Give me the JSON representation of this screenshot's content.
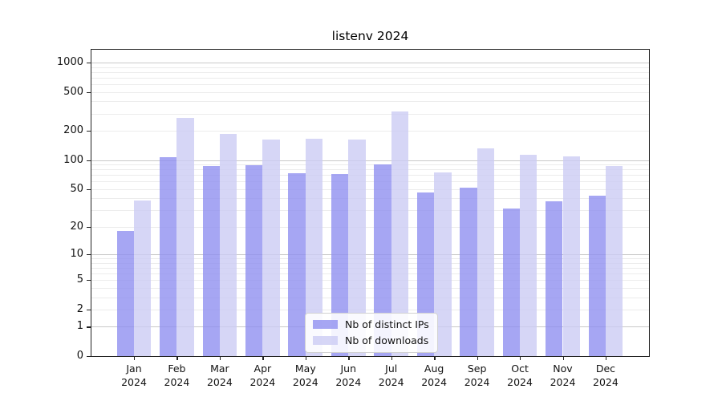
{
  "title": "listenv 2024",
  "chart_data": {
    "type": "bar",
    "title": "listenv 2024",
    "categories": [
      "Jan 2024",
      "Feb 2024",
      "Mar 2024",
      "Apr 2024",
      "May 2024",
      "Jun 2024",
      "Jul 2024",
      "Aug 2024",
      "Sep 2024",
      "Oct 2024",
      "Nov 2024",
      "Dec 2024"
    ],
    "series": [
      {
        "name": "Nb of distinct IPs",
        "color": "#9090f0",
        "fill_opacity": 0.8,
        "values": [
          18,
          107,
          87,
          89,
          73,
          71,
          90,
          46,
          52,
          31,
          37,
          43
        ]
      },
      {
        "name": "Nb of downloads",
        "color": "#ccccf4",
        "fill_opacity": 0.8,
        "values": [
          38,
          270,
          185,
          161,
          165,
          163,
          317,
          74,
          133,
          114,
          109,
          86
        ]
      }
    ],
    "xlabel": "",
    "ylabel": "",
    "yscale": "log1p",
    "yticks": [
      0,
      1,
      2,
      5,
      10,
      20,
      50,
      100,
      200,
      500,
      1000
    ],
    "ylim": [
      0,
      1400
    ],
    "grid": "horizontal",
    "legend_position": "lower center",
    "colors": {
      "major_grid": "#c9c9c9",
      "minor_grid": "#ececec",
      "spine": "#222222"
    }
  }
}
